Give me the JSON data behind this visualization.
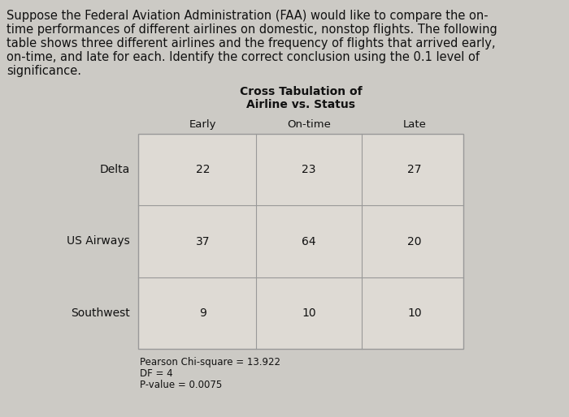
{
  "title_line1": "Cross Tabulation of",
  "title_line2": "Airline vs. Status",
  "col_headers": [
    "Early",
    "On-time",
    "Late"
  ],
  "row_labels": [
    "Delta",
    "US Airways",
    "Southwest"
  ],
  "table_data": [
    [
      22,
      23,
      27
    ],
    [
      37,
      64,
      20
    ],
    [
      9,
      10,
      10
    ]
  ],
  "stats_lines": [
    "Pearson Chi-square = 13.922",
    "DF = 4",
    "P-value = 0.0075"
  ],
  "para_line1": "Suppose the Federal Aviation Administration (FAA) would like to compare the on-",
  "para_line2": "time performances of different airlines on domestic, nonstop flights. The following",
  "para_line3": "table shows three different airlines and the frequency of flights that arrived early,",
  "para_line4": "on-time, and late for each. Identify the correct conclusion using the 0.1 level of",
  "para_line5": "significance.",
  "bg_color": "#cccac5",
  "table_bg": "#dedad4",
  "border_color": "#999999",
  "text_color": "#111111",
  "font_size_para": 10.5,
  "font_size_header": 9.5,
  "font_size_data": 10,
  "font_size_stats": 8.5,
  "font_size_title": 10
}
